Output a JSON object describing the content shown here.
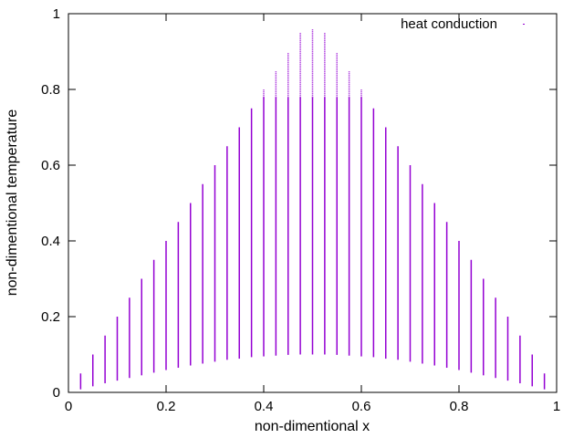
{
  "chart_data": {
    "type": "scatter",
    "title": "",
    "xlabel": "non-dimentional x",
    "ylabel": "non-dimentional temperature",
    "xlim": [
      0,
      1
    ],
    "ylim": [
      0,
      1
    ],
    "x_ticks": [
      "0",
      "0.2",
      "0.4",
      "0.6",
      "0.8",
      "1"
    ],
    "y_ticks": [
      "0",
      "0.2",
      "0.4",
      "0.6",
      "0.8",
      "1"
    ],
    "grid": false,
    "legend_position": "top-right",
    "series": [
      {
        "name": "heat conduction",
        "color": "#9400d3",
        "marker": "dot",
        "description_of_points": "point clouds: at each x, temperatures range from about 0.1*sin(pi*x) up to the triangular initial profile",
        "x": [
          0.025,
          0.05,
          0.075,
          0.1,
          0.125,
          0.15,
          0.175,
          0.2,
          0.225,
          0.25,
          0.275,
          0.3,
          0.325,
          0.35,
          0.375,
          0.4,
          0.425,
          0.45,
          0.475,
          0.5,
          0.525,
          0.55,
          0.575,
          0.6,
          0.625,
          0.65,
          0.675,
          0.7,
          0.725,
          0.75,
          0.775,
          0.8,
          0.825,
          0.85,
          0.875,
          0.9,
          0.925,
          0.95,
          0.975
        ],
        "y_max": [
          0.05,
          0.1,
          0.15,
          0.2,
          0.25,
          0.3,
          0.35,
          0.4,
          0.45,
          0.5,
          0.55,
          0.6,
          0.65,
          0.7,
          0.75,
          0.8,
          0.85,
          0.9,
          0.95,
          0.96,
          0.95,
          0.9,
          0.85,
          0.8,
          0.75,
          0.7,
          0.65,
          0.6,
          0.55,
          0.5,
          0.45,
          0.4,
          0.35,
          0.3,
          0.25,
          0.2,
          0.15,
          0.1,
          0.05
        ],
        "y_min": [
          0.008,
          0.016,
          0.024,
          0.031,
          0.038,
          0.045,
          0.052,
          0.059,
          0.065,
          0.071,
          0.076,
          0.081,
          0.086,
          0.089,
          0.093,
          0.095,
          0.097,
          0.099,
          0.1,
          0.1,
          0.1,
          0.099,
          0.097,
          0.095,
          0.093,
          0.089,
          0.086,
          0.081,
          0.076,
          0.071,
          0.065,
          0.059,
          0.052,
          0.045,
          0.038,
          0.031,
          0.024,
          0.016,
          0.008
        ]
      }
    ]
  }
}
